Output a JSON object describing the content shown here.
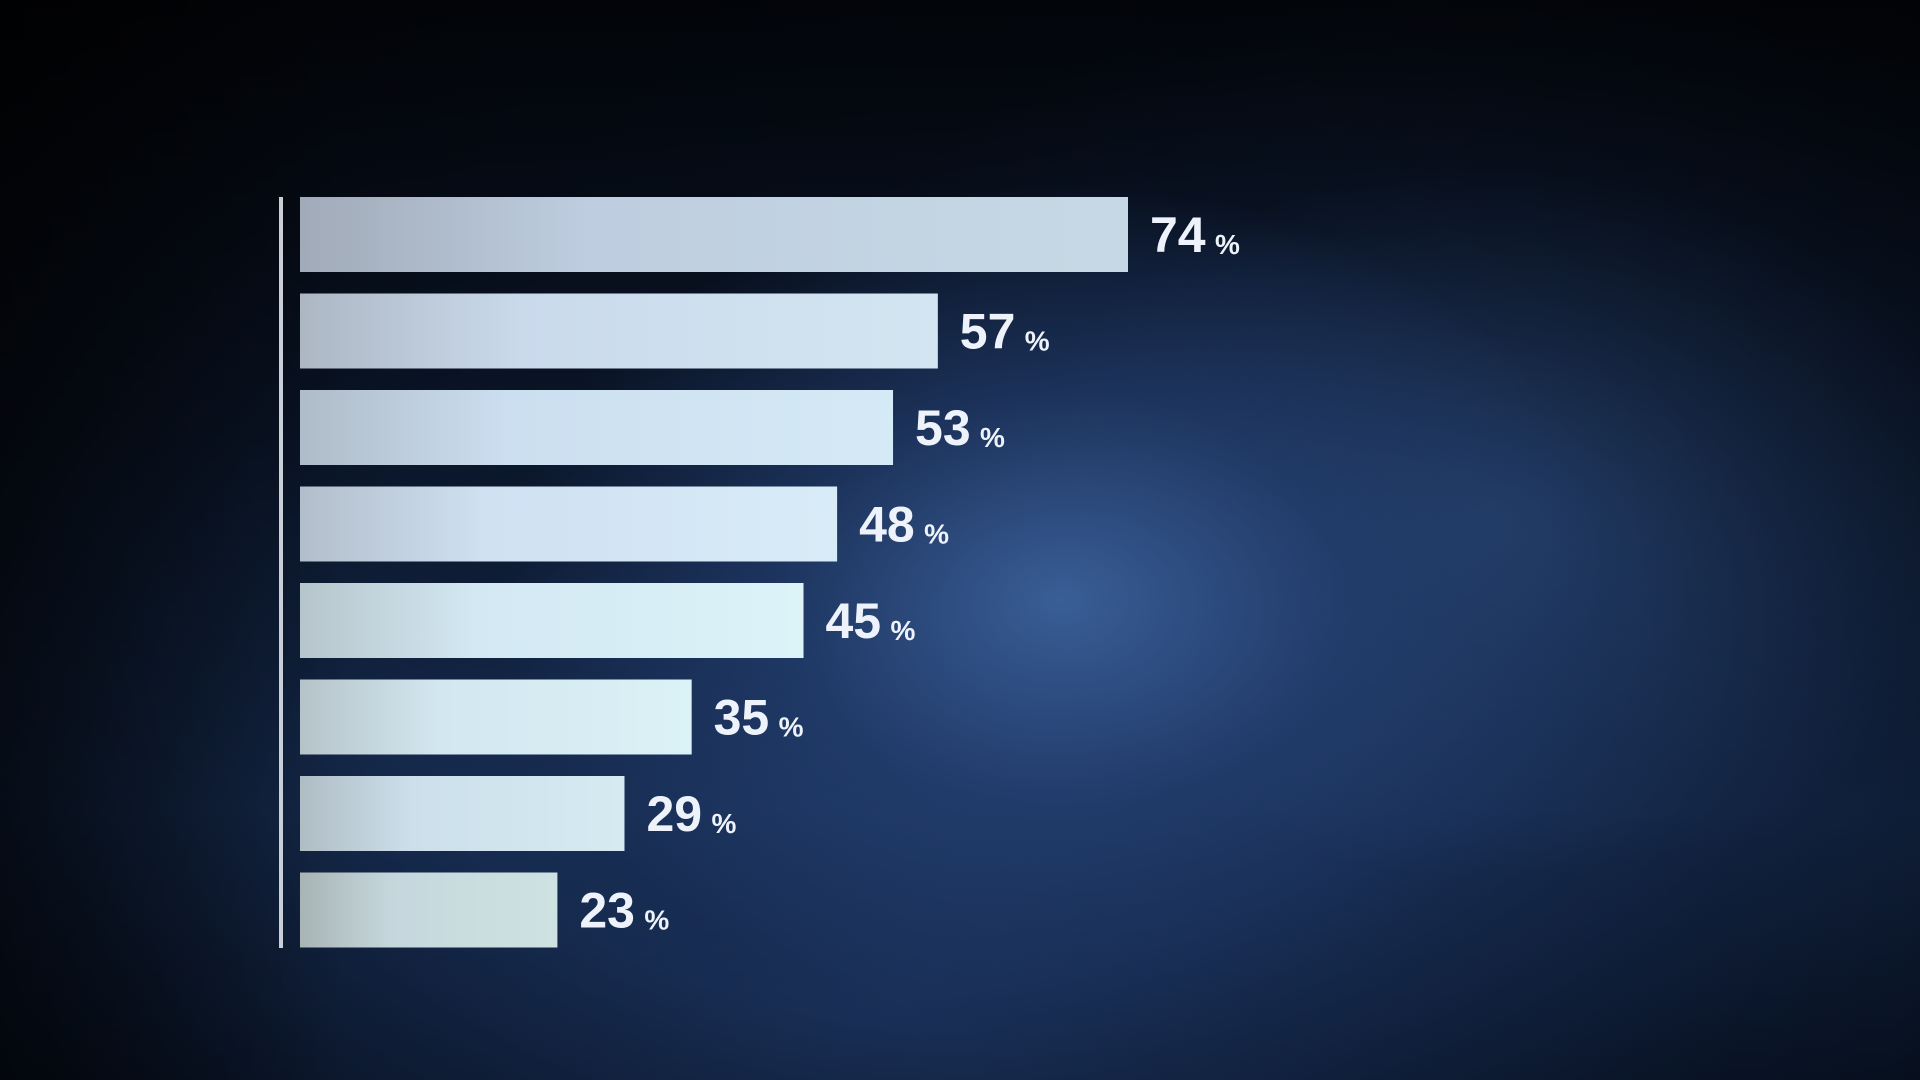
{
  "chart_data": {
    "type": "bar",
    "orientation": "horizontal",
    "values": [
      74,
      57,
      53,
      48,
      45,
      35,
      29,
      23
    ],
    "labels": [
      "74",
      "57",
      "53",
      "48",
      "45",
      "35",
      "29",
      "23"
    ],
    "unit": "%",
    "xlim": [
      0,
      74
    ],
    "grid": false,
    "legend": "none",
    "colors": {
      "bar_light": "#d6eef5",
      "bar_dark": "#8a8f99",
      "text": "#eef3fb",
      "axis": "#c9cfd8",
      "background": "#1b3463"
    }
  }
}
